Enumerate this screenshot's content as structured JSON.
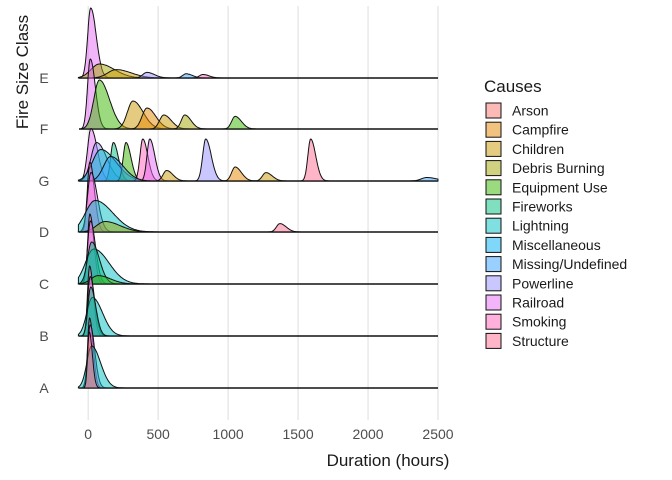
{
  "chart_data": {
    "type": "area",
    "subtype": "ridgeline density",
    "xlabel": "Duration (hours)",
    "ylabel": "Fire Size Class",
    "x_ticks": [
      0,
      500,
      1000,
      1500,
      2000,
      2500
    ],
    "xlim": [
      -80,
      2500
    ],
    "grid": true,
    "legend_position": "right",
    "legend_title": "Causes",
    "categories": [
      "A",
      "B",
      "C",
      "D",
      "G",
      "F",
      "E"
    ],
    "series": [
      {
        "name": "Arson",
        "color": "#F8766D"
      },
      {
        "name": "Campfire",
        "color": "#E58700"
      },
      {
        "name": "Children",
        "color": "#C99800"
      },
      {
        "name": "Debris Burning",
        "color": "#A3A500"
      },
      {
        "name": "Equipment Use",
        "color": "#39B600"
      },
      {
        "name": "Fireworks",
        "color": "#00BF7D"
      },
      {
        "name": "Lightning",
        "color": "#00BFC4"
      },
      {
        "name": "Miscellaneous",
        "color": "#00B0F6"
      },
      {
        "name": "Missing/Undefined",
        "color": "#35A2FF"
      },
      {
        "name": "Powerline",
        "color": "#9590FF"
      },
      {
        "name": "Railroad",
        "color": "#E76BF3"
      },
      {
        "name": "Smoking",
        "color": "#FF62BC"
      },
      {
        "name": "Structure",
        "color": "#FF6C91"
      }
    ],
    "ridges": [
      {
        "category": "A",
        "peaks": [
          {
            "cause": "Smoking",
            "x": 10,
            "height": 1.0,
            "width": 14
          },
          {
            "cause": "Railroad",
            "x": 14,
            "height": 0.9,
            "width": 18
          },
          {
            "cause": "Lightning",
            "x": 25,
            "height": 0.6,
            "width": 35
          },
          {
            "cause": "Arson",
            "x": 8,
            "height": 0.8,
            "width": 12
          }
        ]
      },
      {
        "category": "B",
        "peaks": [
          {
            "cause": "Smoking",
            "x": 10,
            "height": 1.0,
            "width": 15
          },
          {
            "cause": "Railroad",
            "x": 14,
            "height": 0.85,
            "width": 18
          },
          {
            "cause": "Lightning",
            "x": 30,
            "height": 0.55,
            "width": 40
          },
          {
            "cause": "Fireworks",
            "x": 18,
            "height": 0.7,
            "width": 20
          }
        ]
      },
      {
        "category": "C",
        "peaks": [
          {
            "cause": "Smoking",
            "x": 12,
            "height": 1.0,
            "width": 16
          },
          {
            "cause": "Railroad",
            "x": 16,
            "height": 0.9,
            "width": 20
          },
          {
            "cause": "Lightning",
            "x": 40,
            "height": 0.5,
            "width": 60
          },
          {
            "cause": "Fireworks",
            "x": 25,
            "height": 0.6,
            "width": 30
          },
          {
            "cause": "Equipment Use",
            "x": 70,
            "height": 0.12,
            "width": 50
          }
        ]
      },
      {
        "category": "D",
        "peaks": [
          {
            "cause": "Smoking",
            "x": 12,
            "height": 1.0,
            "width": 18
          },
          {
            "cause": "Railroad",
            "x": 20,
            "height": 0.85,
            "width": 25
          },
          {
            "cause": "Lightning",
            "x": 50,
            "height": 0.45,
            "width": 70
          },
          {
            "cause": "Debris Burning",
            "x": 120,
            "height": 0.15,
            "width": 60
          },
          {
            "cause": "Structure",
            "x": 1370,
            "height": 0.12,
            "width": 25
          }
        ]
      },
      {
        "category": "G",
        "peaks": [
          {
            "cause": "Railroad",
            "x": 20,
            "height": 0.75,
            "width": 25
          },
          {
            "cause": "Powerline",
            "x": 60,
            "height": 0.55,
            "width": 40
          },
          {
            "cause": "Fireworks",
            "x": 180,
            "height": 0.55,
            "width": 20
          },
          {
            "cause": "Lightning",
            "x": 90,
            "height": 0.45,
            "width": 60
          },
          {
            "cause": "Equipment Use",
            "x": 270,
            "height": 0.55,
            "width": 20
          },
          {
            "cause": "Smoking",
            "x": 390,
            "height": 0.6,
            "width": 20
          },
          {
            "cause": "Railroad",
            "x": 440,
            "height": 0.6,
            "width": 20
          },
          {
            "cause": "Missing/Undefined",
            "x": 160,
            "height": 0.35,
            "width": 50
          },
          {
            "cause": "Children",
            "x": 560,
            "height": 0.15,
            "width": 25
          },
          {
            "cause": "Powerline",
            "x": 840,
            "height": 0.6,
            "width": 22
          },
          {
            "cause": "Campfire",
            "x": 1050,
            "height": 0.2,
            "width": 25
          },
          {
            "cause": "Children",
            "x": 1270,
            "height": 0.12,
            "width": 25
          },
          {
            "cause": "Structure",
            "x": 1590,
            "height": 0.6,
            "width": 20
          },
          {
            "cause": "Missing/Undefined",
            "x": 2420,
            "height": 0.05,
            "width": 40
          }
        ]
      },
      {
        "category": "F",
        "peaks": [
          {
            "cause": "Railroad",
            "x": 15,
            "height": 1.0,
            "width": 20
          },
          {
            "cause": "Equipment Use",
            "x": 80,
            "height": 0.7,
            "width": 40
          },
          {
            "cause": "Children",
            "x": 320,
            "height": 0.4,
            "width": 40
          },
          {
            "cause": "Campfire",
            "x": 420,
            "height": 0.3,
            "width": 35
          },
          {
            "cause": "Children",
            "x": 540,
            "height": 0.2,
            "width": 30
          },
          {
            "cause": "Debris Burning",
            "x": 690,
            "height": 0.2,
            "width": 25
          },
          {
            "cause": "Equipment Use",
            "x": 1050,
            "height": 0.18,
            "width": 25
          }
        ]
      },
      {
        "category": "E",
        "peaks": [
          {
            "cause": "Railroad",
            "x": 18,
            "height": 1.0,
            "width": 22
          },
          {
            "cause": "Debris Burning",
            "x": 80,
            "height": 0.2,
            "width": 60
          },
          {
            "cause": "Children",
            "x": 200,
            "height": 0.12,
            "width": 60
          },
          {
            "cause": "Powerline",
            "x": 420,
            "height": 0.08,
            "width": 30
          },
          {
            "cause": "Missing/Undefined",
            "x": 700,
            "height": 0.06,
            "width": 25
          },
          {
            "cause": "Smoking",
            "x": 820,
            "height": 0.05,
            "width": 25
          }
        ]
      }
    ]
  }
}
